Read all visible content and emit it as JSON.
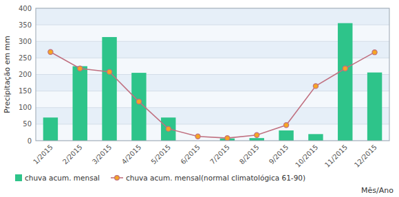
{
  "chart_data": {
    "type": "bar",
    "categories": [
      "1/2015",
      "2/2015",
      "3/2015",
      "4/2015",
      "5/2015",
      "6/2015",
      "7/2015",
      "8/2015",
      "9/2015",
      "10/2015",
      "11/2015",
      "12/2015"
    ],
    "series": [
      {
        "name": "chuva acum. mensal",
        "type": "bar",
        "color": "#2ec48a",
        "values": [
          70,
          225,
          313,
          205,
          70,
          0,
          7,
          8,
          31,
          20,
          355,
          206
        ]
      },
      {
        "name": "chuva acum. mensal(normal climatológica 61-90)",
        "type": "line",
        "color": "#c07080",
        "marker": "circle",
        "values": [
          268,
          218,
          208,
          118,
          36,
          13,
          8,
          17,
          47,
          165,
          218,
          267
        ]
      }
    ],
    "ylabel": "Precipitação em mm",
    "xlabel": "Mês/Ano",
    "ylim": [
      0,
      400
    ],
    "yticks": [
      0,
      50,
      100,
      150,
      200,
      250,
      300,
      350,
      400
    ],
    "grid": true,
    "legend": "bottom"
  }
}
